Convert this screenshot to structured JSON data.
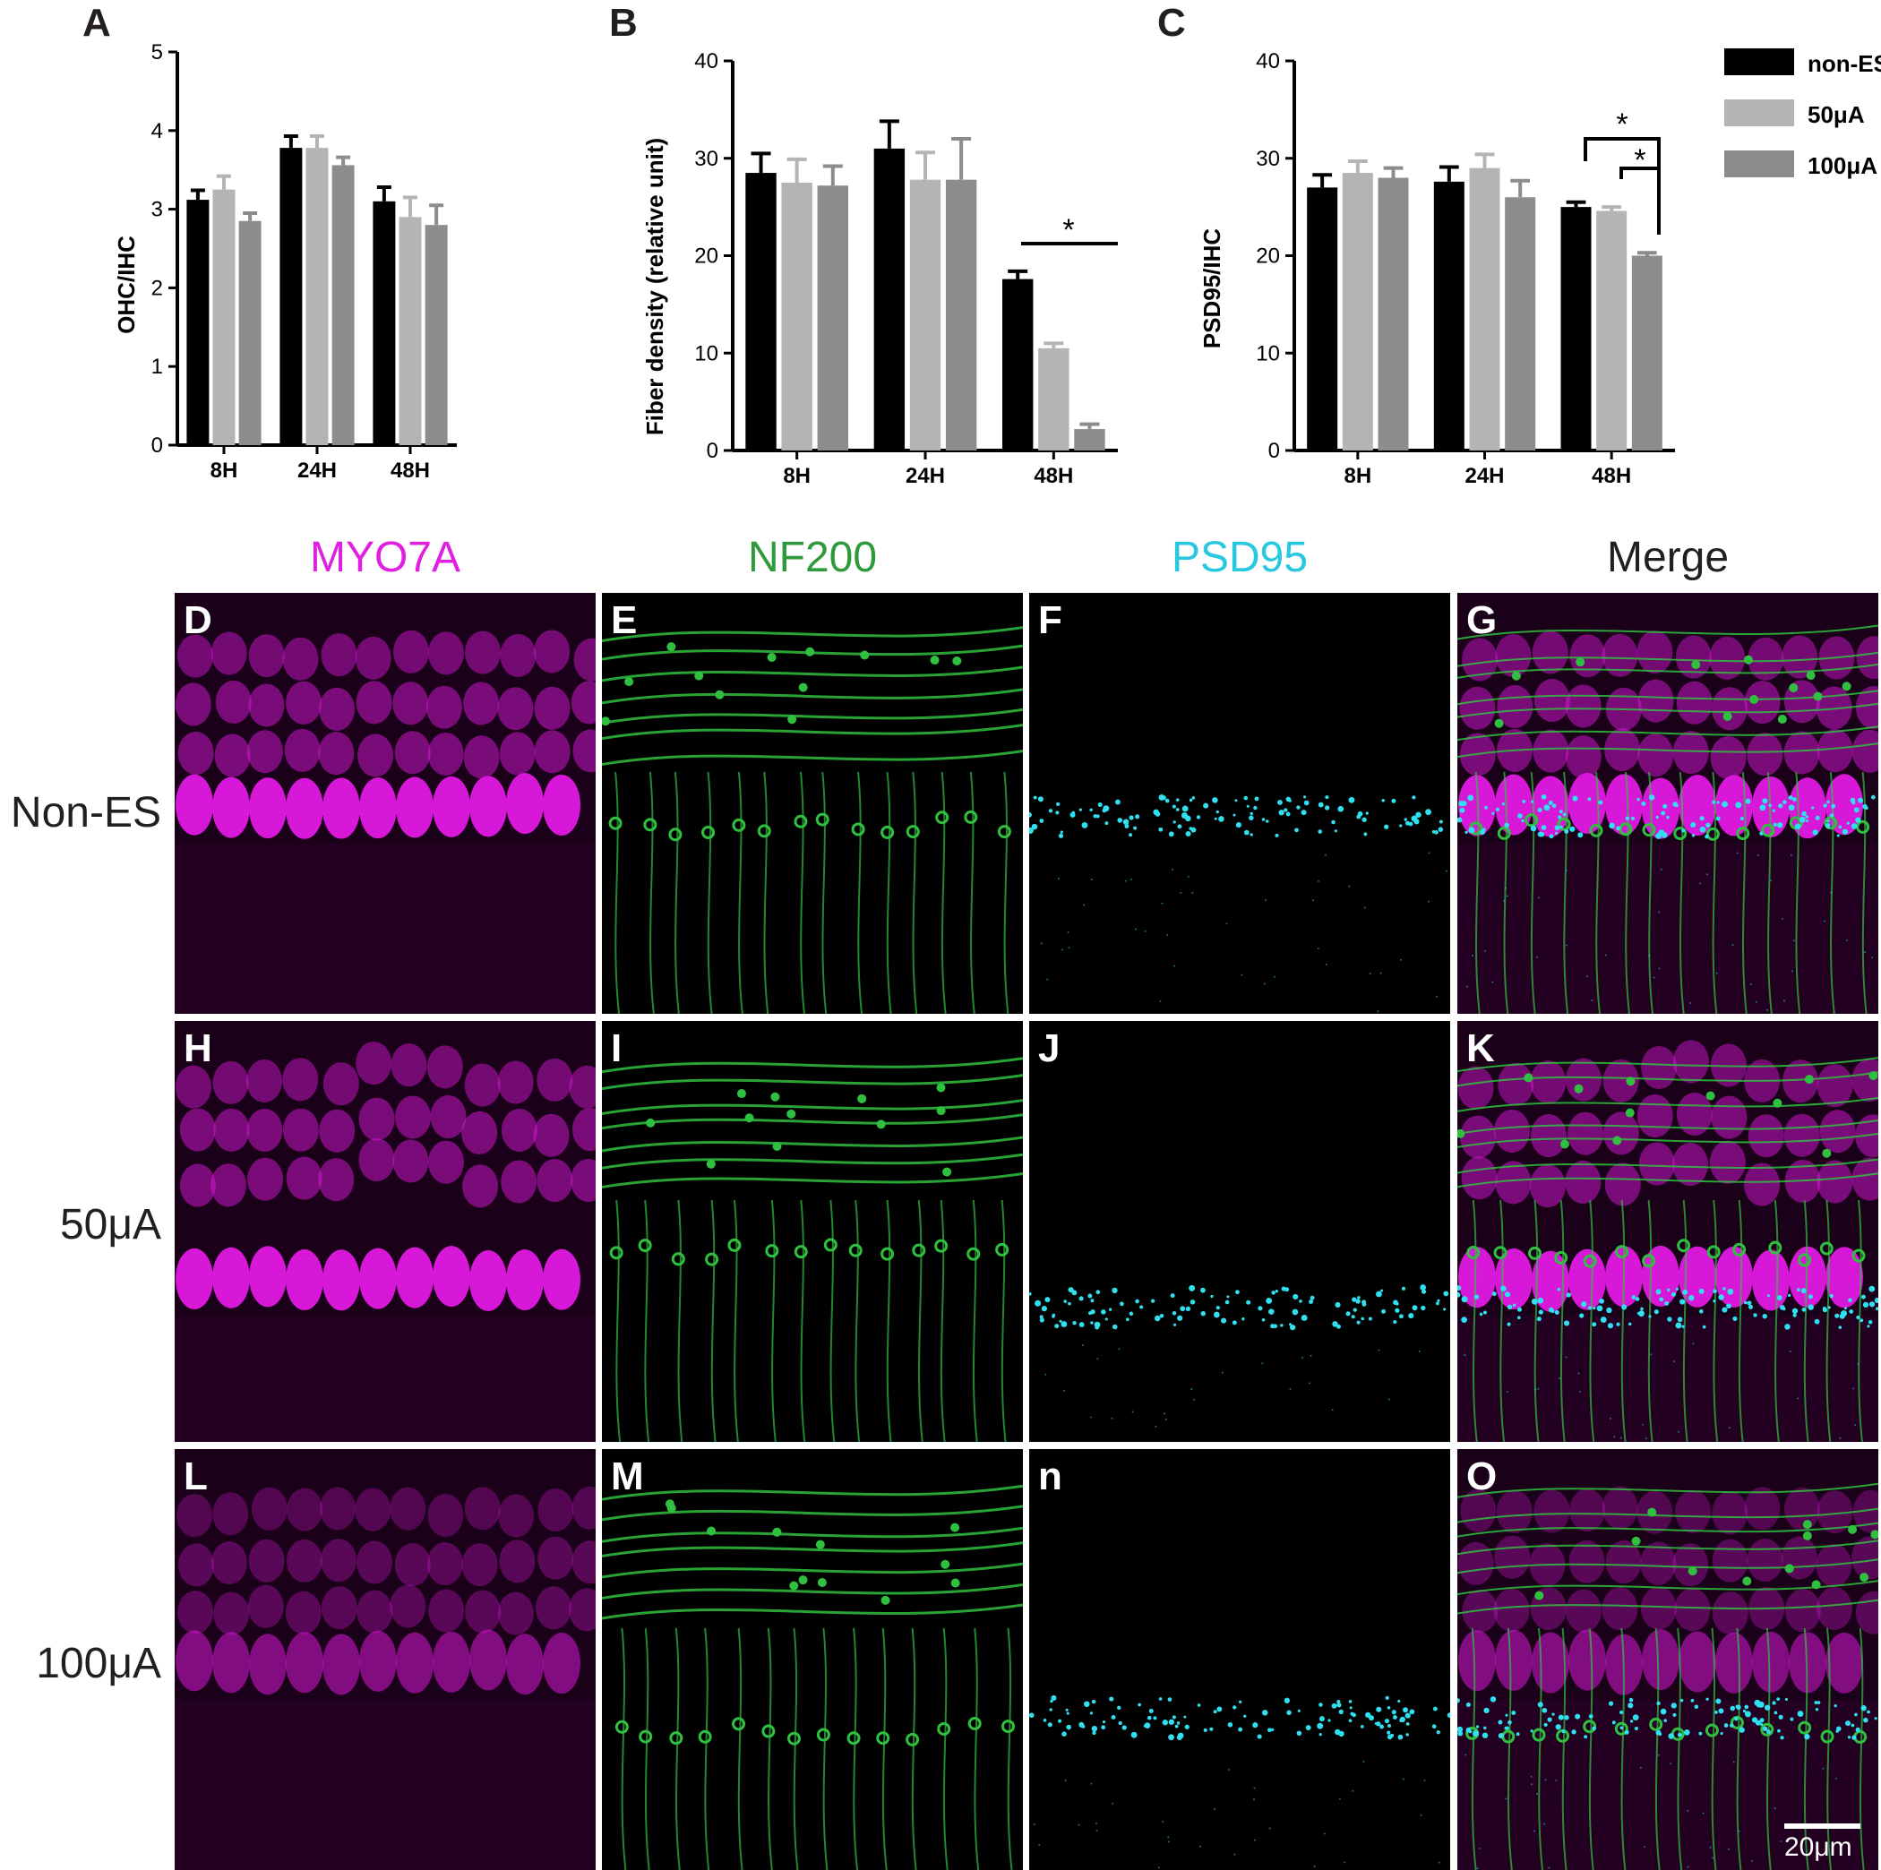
{
  "chart_data": [
    {
      "panel": "A",
      "type": "bar",
      "categories": [
        "8H",
        "24H",
        "48H"
      ],
      "ylabel": "OHC/IHC",
      "ylim": [
        0,
        5
      ],
      "yticks": [
        0,
        1,
        2,
        3,
        4,
        5
      ],
      "series": [
        {
          "name": "non-ES",
          "values": [
            3.12,
            3.78,
            3.1
          ],
          "errors": [
            0.12,
            0.15,
            0.18
          ]
        },
        {
          "name": "50μA",
          "values": [
            3.25,
            3.78,
            2.9
          ],
          "errors": [
            0.17,
            0.15,
            0.25
          ]
        },
        {
          "name": "100μA",
          "values": [
            2.85,
            3.56,
            2.8
          ],
          "errors": [
            0.1,
            0.1,
            0.25
          ]
        }
      ]
    },
    {
      "panel": "B",
      "type": "bar",
      "categories": [
        "8H",
        "24H",
        "48H"
      ],
      "ylabel": "Fiber density (relative unit)",
      "ylim": [
        0,
        40
      ],
      "yticks": [
        0,
        10,
        20,
        30,
        40
      ],
      "series": [
        {
          "name": "non-ES",
          "values": [
            28.5,
            31.0,
            17.6
          ],
          "errors": [
            2.0,
            2.8,
            0.8
          ]
        },
        {
          "name": "50μA",
          "values": [
            27.5,
            27.8,
            10.5
          ],
          "errors": [
            2.4,
            2.8,
            0.5
          ]
        },
        {
          "name": "100μA",
          "values": [
            27.2,
            27.8,
            2.2
          ],
          "errors": [
            2.0,
            4.2,
            0.5
          ]
        }
      ],
      "significance": "*"
    },
    {
      "panel": "C",
      "type": "bar",
      "categories": [
        "8H",
        "24H",
        "48H"
      ],
      "ylabel": "PSD95/IHC",
      "ylim": [
        0,
        40
      ],
      "yticks": [
        0,
        10,
        20,
        30,
        40
      ],
      "series": [
        {
          "name": "non-ES",
          "values": [
            27.0,
            27.6,
            25.0
          ],
          "errors": [
            1.3,
            1.5,
            0.5
          ]
        },
        {
          "name": "50μA",
          "values": [
            28.5,
            29.0,
            24.6
          ],
          "errors": [
            1.2,
            1.4,
            0.4
          ]
        },
        {
          "name": "100μA",
          "values": [
            28.0,
            26.0,
            20.0
          ],
          "errors": [
            1.0,
            1.7,
            0.3
          ]
        }
      ],
      "significance": [
        "*",
        "*"
      ],
      "legend_position": "top-right"
    }
  ],
  "panel_letters": {
    "a": "A",
    "b": "B",
    "c": "C"
  },
  "series_colors": [
    "#000000",
    "#b4b4b4",
    "#8c8c8c"
  ],
  "legend": [
    "non-ES",
    "50μA",
    "100μA"
  ],
  "columns": [
    {
      "label": "MYO7A",
      "color": "#e020e0"
    },
    {
      "label": "NF200",
      "color": "#2e9a3c"
    },
    {
      "label": "PSD95",
      "color": "#28c8e0"
    },
    {
      "label": "Merge",
      "color": "#231f20"
    }
  ],
  "rows": [
    {
      "label": "Non-ES",
      "letters": [
        "D",
        "E",
        "F",
        "G"
      ]
    },
    {
      "label": "50μA",
      "letters": [
        "H",
        "I",
        "J",
        "K"
      ]
    },
    {
      "label": "100μA",
      "letters": [
        "L",
        "M",
        "n",
        "O"
      ]
    }
  ],
  "scale_bar": "20μm"
}
